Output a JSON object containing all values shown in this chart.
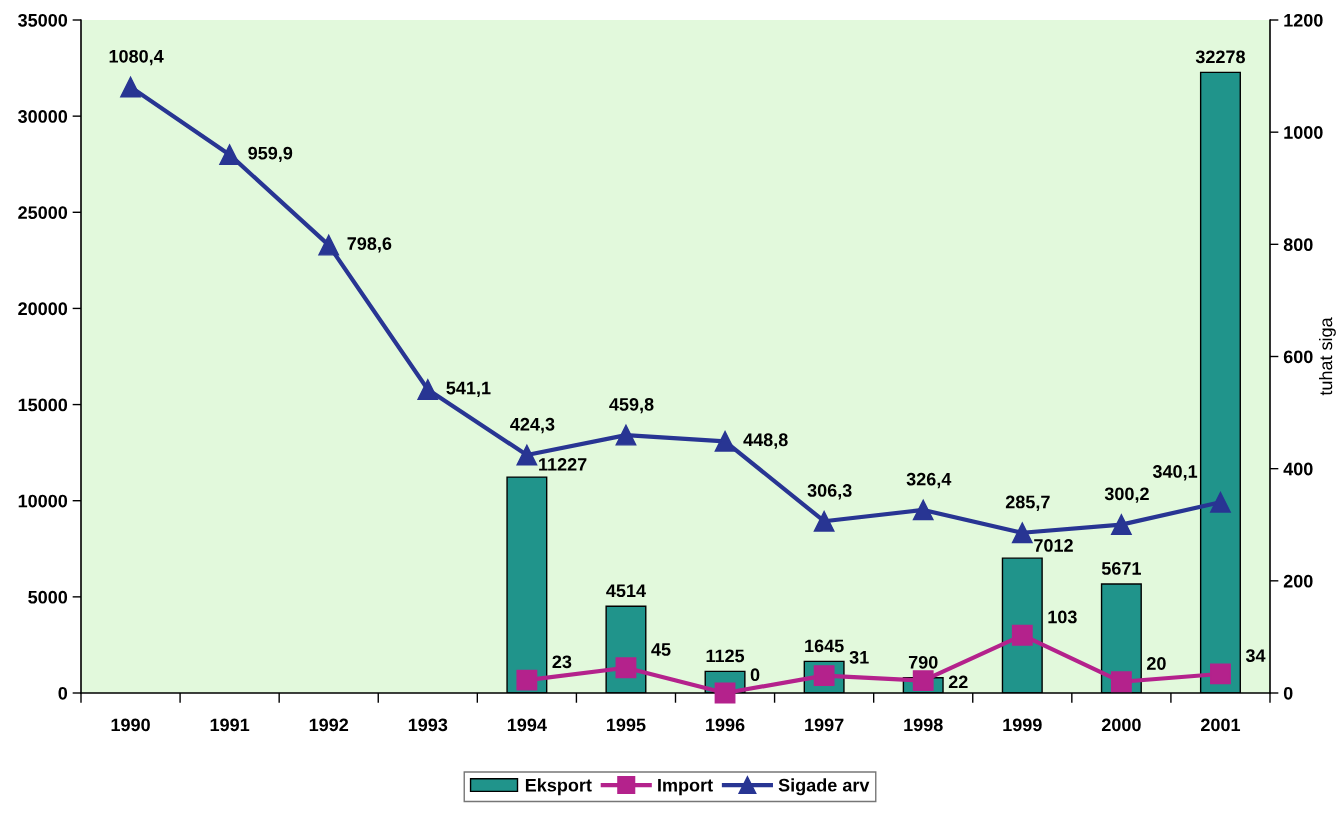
{
  "chart_data": {
    "type": "bar",
    "categories": [
      "1990",
      "1991",
      "1992",
      "1993",
      "1994",
      "1995",
      "1996",
      "1997",
      "1998",
      "1999",
      "2000",
      "2001"
    ],
    "series": [
      {
        "name": "Eksport",
        "color": "#20948b",
        "values": [
          null,
          null,
          null,
          null,
          11227,
          4514,
          1125,
          1645,
          790,
          7012,
          5671,
          32278
        ],
        "value_labels": [
          null,
          null,
          null,
          null,
          "11227",
          "4514",
          "1125",
          "1645",
          "790",
          "7012",
          "5671",
          "32278"
        ]
      },
      {
        "name": "Import",
        "type": "line",
        "axis": "y2",
        "color": "#b4228c",
        "marker": "square",
        "values": [
          null,
          null,
          null,
          null,
          23,
          45,
          0,
          31,
          22,
          103,
          20,
          34
        ],
        "value_labels": [
          null,
          null,
          null,
          null,
          "23",
          "45",
          "0",
          "31",
          "22",
          "103",
          "20",
          "34"
        ]
      },
      {
        "name": "Sigade arv",
        "type": "line",
        "axis": "y2",
        "color": "#283593",
        "marker": "triangle",
        "values": [
          1080.4,
          959.9,
          798.6,
          541.1,
          424.3,
          459.8,
          448.8,
          306.3,
          326.4,
          285.7,
          300.2,
          340.1
        ],
        "value_labels": [
          "1080,4",
          "959,9",
          "798,6",
          "541,1",
          "424,3",
          "459,8",
          "448,8",
          "306,3",
          "326,4",
          "285,7",
          "300,2",
          "340,1"
        ]
      }
    ],
    "ylim": [
      0,
      35000
    ],
    "yticks": [
      0,
      5000,
      10000,
      15000,
      20000,
      25000,
      30000,
      35000
    ],
    "y2label": "tuhat siga",
    "y2lim": [
      0,
      1200
    ],
    "y2ticks": [
      0,
      200,
      400,
      600,
      800,
      1000,
      1200
    ],
    "legend": "bottom"
  }
}
